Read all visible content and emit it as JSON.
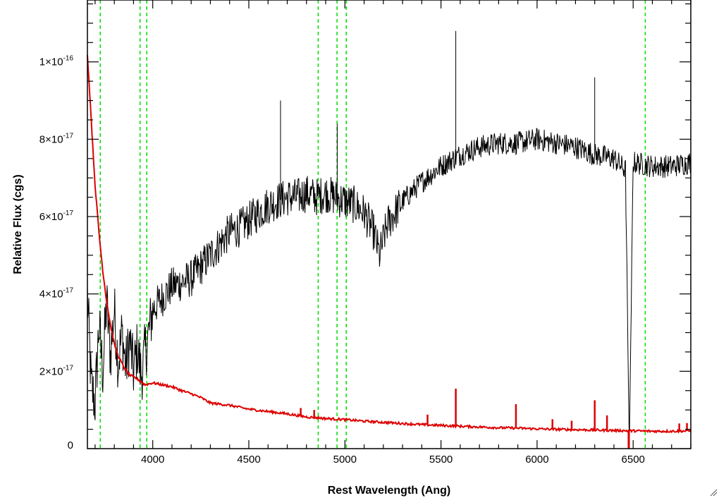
{
  "chart_data": {
    "type": "line",
    "title": "",
    "xlabel": "Rest Wavelength (Ang)",
    "ylabel": "Relative Flux (cgs)",
    "xlim": [
      3660,
      6800
    ],
    "ylim": [
      0,
      1.16e-16
    ],
    "x_ticks": [
      {
        "value": 4000,
        "label": "4000"
      },
      {
        "value": 4500,
        "label": "4500"
      },
      {
        "value": 5000,
        "label": "5000"
      },
      {
        "value": 5500,
        "label": "5500"
      },
      {
        "value": 6000,
        "label": "6000"
      },
      {
        "value": 6500,
        "label": "6500"
      }
    ],
    "y_ticks": [
      {
        "value": 0,
        "mantissa": "0",
        "exponent": ""
      },
      {
        "value": 2e-17,
        "mantissa": "2×10",
        "exponent": "-17"
      },
      {
        "value": 4e-17,
        "mantissa": "4×10",
        "exponent": "-17"
      },
      {
        "value": 6e-17,
        "mantissa": "6×10",
        "exponent": "-17"
      },
      {
        "value": 8e-17,
        "mantissa": "8×10",
        "exponent": "-17"
      },
      {
        "value": 1e-16,
        "mantissa": "1×10",
        "exponent": "-16"
      }
    ],
    "reference_lines": {
      "color": "#00dd00",
      "style": "dashed",
      "x": [
        3727,
        3934,
        3969,
        4861,
        4959,
        5007,
        6563
      ]
    },
    "series": [
      {
        "color": "#000000",
        "points": [
          [
            3660,
            4e-17
          ],
          [
            3680,
            1.6e-17
          ],
          [
            3700,
            1.2e-17
          ],
          [
            3720,
            3.2e-17
          ],
          [
            3740,
            2e-17
          ],
          [
            3760,
            3.8e-17
          ],
          [
            3780,
            2.4e-17
          ],
          [
            3800,
            3.6e-17
          ],
          [
            3820,
            2.2e-17
          ],
          [
            3840,
            3e-17
          ],
          [
            3860,
            2.1e-17
          ],
          [
            3880,
            2.8e-17
          ],
          [
            3900,
            2e-17
          ],
          [
            3920,
            2.6e-17
          ],
          [
            3940,
            1.9e-17
          ],
          [
            3960,
            2.5e-17
          ],
          [
            3980,
            3e-17
          ],
          [
            4000,
            3.6e-17
          ],
          [
            4050,
            3.9e-17
          ],
          [
            4100,
            4.2e-17
          ],
          [
            4150,
            4.3e-17
          ],
          [
            4200,
            4.4e-17
          ],
          [
            4250,
            4.7e-17
          ],
          [
            4300,
            5e-17
          ],
          [
            4350,
            5.3e-17
          ],
          [
            4400,
            5.6e-17
          ],
          [
            4450,
            5.7e-17
          ],
          [
            4500,
            5.9e-17
          ],
          [
            4550,
            6.1e-17
          ],
          [
            4600,
            6.3e-17
          ],
          [
            4650,
            6.4e-17
          ],
          [
            4700,
            6.5e-17
          ],
          [
            4750,
            6.5e-17
          ],
          [
            4800,
            6.6e-17
          ],
          [
            4850,
            6.5e-17
          ],
          [
            4900,
            6.6e-17
          ],
          [
            4950,
            6.5e-17
          ],
          [
            5000,
            6.4e-17
          ],
          [
            5050,
            6.3e-17
          ],
          [
            5100,
            6.1e-17
          ],
          [
            5150,
            5.6e-17
          ],
          [
            5180,
            5e-17
          ],
          [
            5220,
            5.8e-17
          ],
          [
            5300,
            6.4e-17
          ],
          [
            5400,
            6.9e-17
          ],
          [
            5500,
            7.3e-17
          ],
          [
            5600,
            7.6e-17
          ],
          [
            5700,
            7.8e-17
          ],
          [
            5800,
            7.9e-17
          ],
          [
            5900,
            7.9e-17
          ],
          [
            6000,
            8e-17
          ],
          [
            6100,
            7.9e-17
          ],
          [
            6200,
            7.8e-17
          ],
          [
            6300,
            7.6e-17
          ],
          [
            6400,
            7.5e-17
          ],
          [
            6460,
            7.2e-17
          ],
          [
            6480,
            0.0
          ],
          [
            6500,
            7.4e-17
          ],
          [
            6600,
            7.3e-17
          ],
          [
            6700,
            7.3e-17
          ],
          [
            6800,
            7.4e-17
          ]
        ]
      },
      {
        "color": "#dd0000",
        "points": [
          [
            3660,
            1.02e-16
          ],
          [
            3680,
            8.5e-17
          ],
          [
            3700,
            6.8e-17
          ],
          [
            3720,
            5.6e-17
          ],
          [
            3740,
            4.6e-17
          ],
          [
            3760,
            3.8e-17
          ],
          [
            3780,
            3.2e-17
          ],
          [
            3800,
            2.7e-17
          ],
          [
            3820,
            2.4e-17
          ],
          [
            3850,
            2.1e-17
          ],
          [
            3880,
            1.9e-17
          ],
          [
            3920,
            1.8e-17
          ],
          [
            3960,
            1.65e-17
          ],
          [
            4000,
            1.7e-17
          ],
          [
            4050,
            1.65e-17
          ],
          [
            4100,
            1.6e-17
          ],
          [
            4150,
            1.5e-17
          ],
          [
            4200,
            1.42e-17
          ],
          [
            4250,
            1.32e-17
          ],
          [
            4300,
            1.18e-17
          ],
          [
            4400,
            1.12e-17
          ],
          [
            4500,
            1.02e-17
          ],
          [
            4600,
            9.6e-18
          ],
          [
            4700,
            9e-18
          ],
          [
            4800,
            8.2e-18
          ],
          [
            4900,
            7.8e-18
          ],
          [
            5000,
            7.5e-18
          ],
          [
            5100,
            7.1e-18
          ],
          [
            5200,
            6.8e-18
          ],
          [
            5300,
            6.5e-18
          ],
          [
            5400,
            6.2e-18
          ],
          [
            5500,
            6e-18
          ],
          [
            5600,
            5.8e-18
          ],
          [
            5700,
            5.6e-18
          ],
          [
            5800,
            5.4e-18
          ],
          [
            5900,
            5.3e-18
          ],
          [
            6000,
            5.1e-18
          ],
          [
            6100,
            5e-18
          ],
          [
            6200,
            4.9e-18
          ],
          [
            6300,
            4.8e-18
          ],
          [
            6400,
            4.7e-18
          ],
          [
            6500,
            4.6e-18
          ],
          [
            6600,
            4.5e-18
          ],
          [
            6700,
            4.5e-18
          ],
          [
            6800,
            4.6e-18
          ]
        ],
        "spikes": [
          [
            4770,
            1.05e-17
          ],
          [
            4840,
            1e-17
          ],
          [
            5430,
            8.8e-18
          ],
          [
            5577,
            1.55e-17
          ],
          [
            5890,
            1.15e-17
          ],
          [
            6080,
            7.6e-18
          ],
          [
            6180,
            7.2e-18
          ],
          [
            6300,
            1.25e-17
          ],
          [
            6364,
            8.6e-18
          ],
          [
            6740,
            6.5e-18
          ],
          [
            6780,
            6.6e-18
          ]
        ],
        "dips": [
          [
            6477,
            -1.2e-18
          ]
        ]
      }
    ]
  }
}
